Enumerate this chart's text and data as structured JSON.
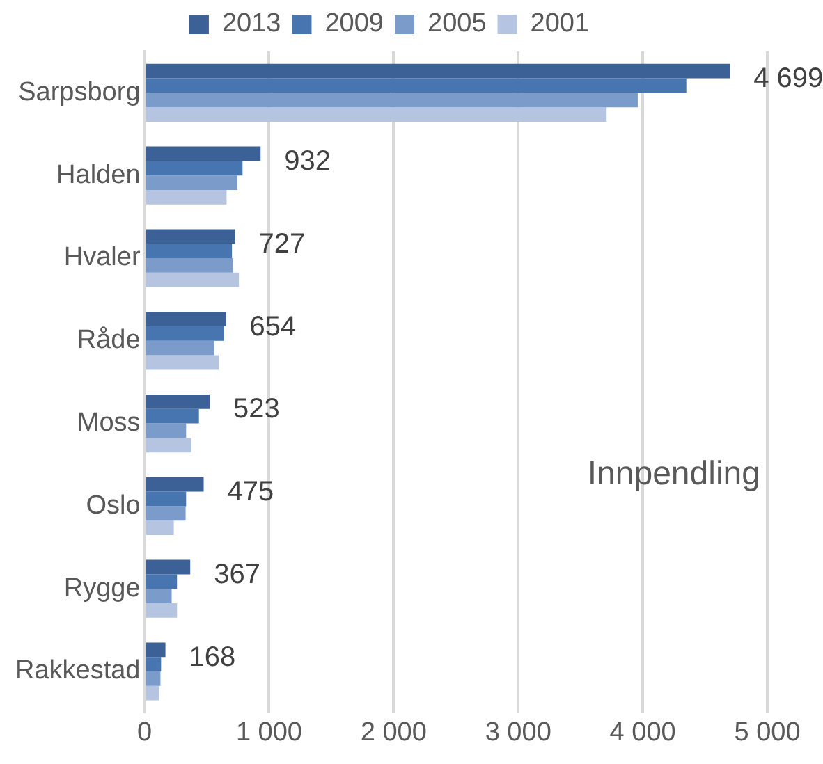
{
  "chart_data": {
    "type": "bar",
    "orientation": "horizontal",
    "categories": [
      "Sarpsborg",
      "Halden",
      "Hvaler",
      "Råde",
      "Moss",
      "Oslo",
      "Rygge",
      "Rakkestad"
    ],
    "series": [
      {
        "name": "2013",
        "color": "#3b6196",
        "values": [
          4699,
          932,
          727,
          654,
          523,
          475,
          367,
          168
        ],
        "value_labels": [
          "4 699",
          "932",
          "727",
          "654",
          "523",
          "475",
          "367",
          "168"
        ]
      },
      {
        "name": "2009",
        "color": "#4775b0",
        "values": [
          4350,
          787,
          702,
          638,
          437,
          334,
          261,
          133
        ]
      },
      {
        "name": "2005",
        "color": "#7b9bca",
        "values": [
          3960,
          745,
          710,
          561,
          334,
          330,
          218,
          128
        ]
      },
      {
        "name": "2001",
        "color": "#b5c4e1",
        "values": [
          3710,
          659,
          758,
          595,
          377,
          235,
          261,
          116
        ]
      }
    ],
    "xlim": [
      0,
      5000
    ],
    "xticks": [
      0,
      {
        "value": 1000,
        "label": "1 000"
      },
      {
        "value": 2000,
        "label": "2 000"
      },
      {
        "value": 3000,
        "label": "3 000"
      },
      {
        "value": 4000,
        "label": "4 000"
      },
      {
        "value": 5000,
        "label": "5 000"
      }
    ],
    "grid": "x",
    "legend": "top",
    "annotations": [
      "Innpendling"
    ]
  }
}
